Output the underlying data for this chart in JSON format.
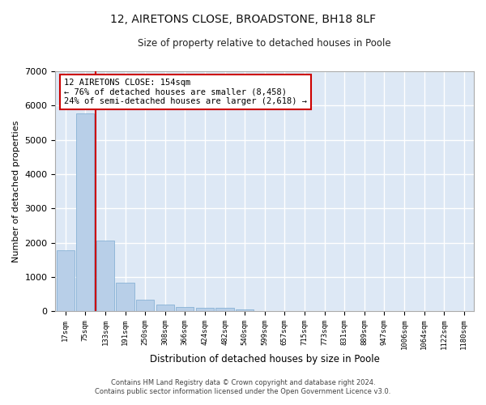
{
  "title": "12, AIRETONS CLOSE, BROADSTONE, BH18 8LF",
  "subtitle": "Size of property relative to detached houses in Poole",
  "xlabel": "Distribution of detached houses by size in Poole",
  "ylabel": "Number of detached properties",
  "bar_color": "#b8cfe8",
  "bar_edge_color": "#7aaad0",
  "background_color": "#dde8f5",
  "grid_color": "#ffffff",
  "categories": [
    "17sqm",
    "75sqm",
    "133sqm",
    "191sqm",
    "250sqm",
    "308sqm",
    "366sqm",
    "424sqm",
    "482sqm",
    "540sqm",
    "599sqm",
    "657sqm",
    "715sqm",
    "773sqm",
    "831sqm",
    "889sqm",
    "947sqm",
    "1006sqm",
    "1064sqm",
    "1122sqm",
    "1180sqm"
  ],
  "values": [
    1780,
    5780,
    2050,
    820,
    340,
    185,
    120,
    105,
    90,
    60,
    0,
    0,
    0,
    0,
    0,
    0,
    0,
    0,
    0,
    0,
    0
  ],
  "ylim": [
    0,
    7000
  ],
  "yticks": [
    0,
    1000,
    2000,
    3000,
    4000,
    5000,
    6000,
    7000
  ],
  "vline_color": "#cc0000",
  "vline_index": 1.5,
  "annotation_text": "12 AIRETONS CLOSE: 154sqm\n← 76% of detached houses are smaller (8,458)\n24% of semi-detached houses are larger (2,618) →",
  "annotation_box_color": "#ffffff",
  "annotation_box_edge": "#cc0000",
  "footer_line1": "Contains HM Land Registry data © Crown copyright and database right 2024.",
  "footer_line2": "Contains public sector information licensed under the Open Government Licence v3.0."
}
